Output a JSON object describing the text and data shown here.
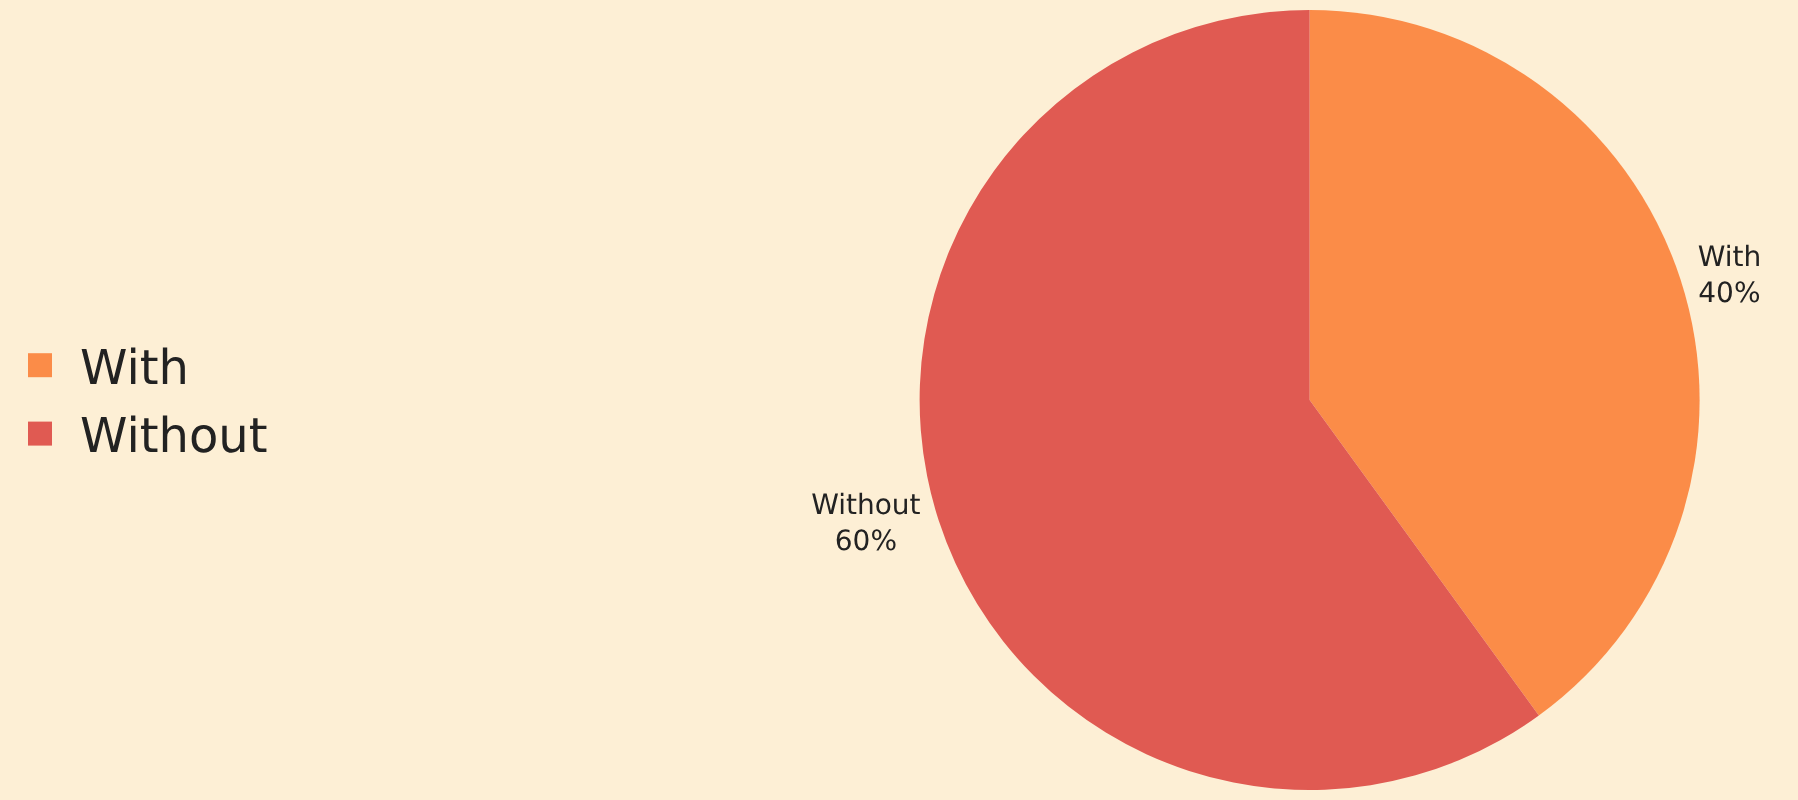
{
  "chart_data": {
    "type": "pie",
    "categories": [
      "With",
      "Without"
    ],
    "values": [
      40,
      60
    ],
    "colors": [
      "#fb8c48",
      "#e05a52"
    ],
    "value_labels": [
      "40%",
      "60%"
    ],
    "legend": "left"
  }
}
